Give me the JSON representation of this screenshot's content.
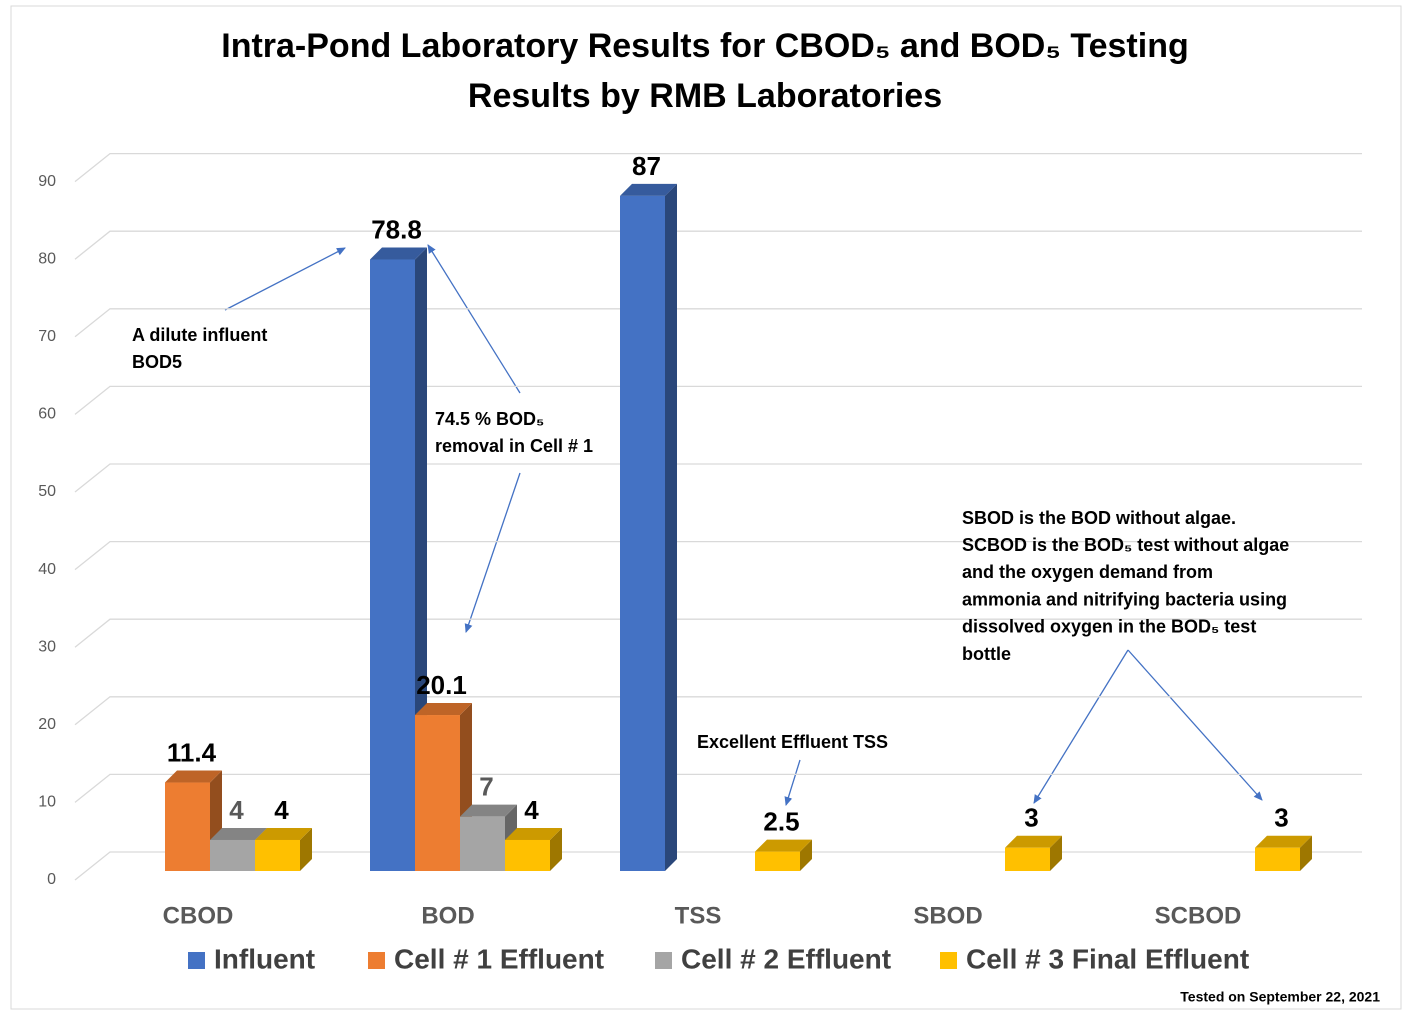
{
  "chart_data": {
    "type": "bar3d",
    "title": "Intra-Pond Laboratory Results for CBOD₅ and BOD₅ Testing",
    "subtitle": "Results by RMB Laboratories",
    "categories": [
      "CBOD",
      "BOD",
      "TSS",
      "SBOD",
      "SCBOD"
    ],
    "series": [
      {
        "name": "Influent",
        "color": "#4472c4",
        "values": [
          null,
          78.8,
          87,
          null,
          null
        ]
      },
      {
        "name": "Cell # 1 Effluent",
        "color": "#ed7d31",
        "values": [
          11.4,
          20.1,
          null,
          null,
          null
        ]
      },
      {
        "name": "Cell # 2 Effluent",
        "color": "#a5a5a5",
        "values": [
          4,
          7,
          null,
          null,
          null
        ]
      },
      {
        "name": "Cell # 3 Final Effluent",
        "color": "#ffc000",
        "values": [
          4,
          4,
          2.5,
          3,
          3
        ]
      }
    ],
    "ylim": [
      0,
      90
    ],
    "yticks": [
      0,
      10,
      20,
      30,
      40,
      50,
      60,
      70,
      80,
      90
    ],
    "grid": true,
    "legend": "bottom",
    "annotations": [
      {
        "lines": [
          "A dilute influent",
          "BOD5"
        ]
      },
      {
        "lines": [
          "74.5 % BOD₅",
          "removal in Cell # 1"
        ]
      },
      {
        "lines": [
          "Excellent Effluent TSS"
        ]
      },
      {
        "lines": [
          "SBOD is the BOD without algae.",
          "SCBOD is the BOD₅ test without algae",
          "and the oxygen demand from",
          "ammonia and nitrifying bacteria using",
          "dissolved oxygen in the BOD₅ test",
          "bottle"
        ]
      }
    ],
    "footnote": "Tested on September 22, 2021"
  }
}
